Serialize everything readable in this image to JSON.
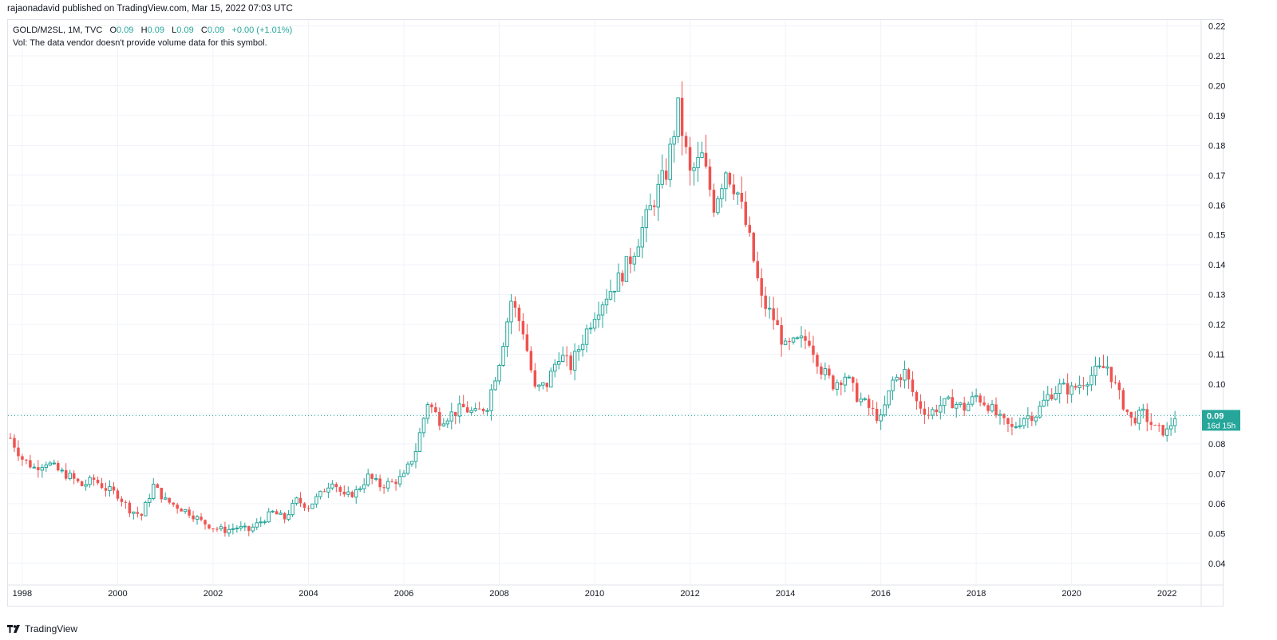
{
  "header": {
    "publisher": "rajaonadavid published on TradingView.com, Mar 15, 2022 07:03 UTC"
  },
  "legend": {
    "symbol": "GOLD/M2SL, 1M, TVC",
    "open_label": "O",
    "open": "0.09",
    "high_label": "H",
    "high": "0.09",
    "low_label": "L",
    "low": "0.09",
    "close_label": "C",
    "close": "0.09",
    "change": "+0.00 (+1.01%)",
    "volume_note": "Vol: The data vendor doesn't provide volume data for this symbol."
  },
  "last_price": {
    "value": "0.09",
    "countdown": "16d 15h",
    "level": 0.0895
  },
  "footer": {
    "brand": "TradingView"
  },
  "colors": {
    "up": "#26a69a",
    "down": "#ef5350",
    "grid": "#f0f3fa",
    "badge": "#26a69a"
  },
  "chart_data": {
    "type": "candlestick",
    "title": "GOLD/M2SL, 1M, TVC",
    "xlabel": "",
    "ylabel": "",
    "ylim": [
      0.033,
      0.222
    ],
    "xlim": [
      1997.7,
      2022.7
    ],
    "y_ticks": [
      "0.04",
      "0.05",
      "0.06",
      "0.07",
      "0.08",
      "0.09",
      "0.10",
      "0.11",
      "0.12",
      "0.13",
      "0.14",
      "0.15",
      "0.16",
      "0.17",
      "0.18",
      "0.19",
      "0.20",
      "0.21",
      "0.22"
    ],
    "x_ticks": [
      "1998",
      "2000",
      "2002",
      "2004",
      "2006",
      "2008",
      "2010",
      "2012",
      "2014",
      "2016",
      "2018",
      "2020",
      "2022"
    ],
    "series_closes": [
      [
        1997.75,
        0.082
      ],
      [
        1998.0,
        0.075
      ],
      [
        1998.25,
        0.072
      ],
      [
        1998.5,
        0.074
      ],
      [
        1998.75,
        0.071
      ],
      [
        1999.0,
        0.069
      ],
      [
        1999.25,
        0.066
      ],
      [
        1999.5,
        0.068
      ],
      [
        1999.75,
        0.065
      ],
      [
        2000.0,
        0.063
      ],
      [
        2000.25,
        0.058
      ],
      [
        2000.5,
        0.056
      ],
      [
        2000.75,
        0.066
      ],
      [
        2001.0,
        0.061
      ],
      [
        2001.25,
        0.059
      ],
      [
        2001.5,
        0.057
      ],
      [
        2001.75,
        0.054
      ],
      [
        2002.0,
        0.052
      ],
      [
        2002.25,
        0.051
      ],
      [
        2002.5,
        0.052
      ],
      [
        2002.75,
        0.051
      ],
      [
        2003.0,
        0.054
      ],
      [
        2003.25,
        0.057
      ],
      [
        2003.5,
        0.055
      ],
      [
        2003.75,
        0.061
      ],
      [
        2004.0,
        0.059
      ],
      [
        2004.25,
        0.063
      ],
      [
        2004.5,
        0.068
      ],
      [
        2004.75,
        0.062
      ],
      [
        2005.0,
        0.064
      ],
      [
        2005.25,
        0.069
      ],
      [
        2005.5,
        0.066
      ],
      [
        2005.75,
        0.067
      ],
      [
        2006.0,
        0.069
      ],
      [
        2006.25,
        0.078
      ],
      [
        2006.5,
        0.094
      ],
      [
        2006.75,
        0.088
      ],
      [
        2007.0,
        0.09
      ],
      [
        2007.25,
        0.092
      ],
      [
        2007.5,
        0.09
      ],
      [
        2007.75,
        0.093
      ],
      [
        2008.0,
        0.108
      ],
      [
        2008.25,
        0.128
      ],
      [
        2008.5,
        0.118
      ],
      [
        2008.75,
        0.098
      ],
      [
        2009.0,
        0.1
      ],
      [
        2009.25,
        0.11
      ],
      [
        2009.5,
        0.106
      ],
      [
        2009.75,
        0.115
      ],
      [
        2010.0,
        0.124
      ],
      [
        2010.25,
        0.13
      ],
      [
        2010.5,
        0.135
      ],
      [
        2010.75,
        0.142
      ],
      [
        2011.0,
        0.152
      ],
      [
        2011.25,
        0.162
      ],
      [
        2011.5,
        0.171
      ],
      [
        2011.75,
        0.192
      ],
      [
        2012.0,
        0.17
      ],
      [
        2012.25,
        0.176
      ],
      [
        2012.5,
        0.16
      ],
      [
        2012.75,
        0.172
      ],
      [
        2013.0,
        0.164
      ],
      [
        2013.25,
        0.148
      ],
      [
        2013.5,
        0.128
      ],
      [
        2013.75,
        0.122
      ],
      [
        2014.0,
        0.112
      ],
      [
        2014.25,
        0.114
      ],
      [
        2014.5,
        0.115
      ],
      [
        2014.75,
        0.105
      ],
      [
        2015.0,
        0.1
      ],
      [
        2015.25,
        0.103
      ],
      [
        2015.5,
        0.096
      ],
      [
        2015.75,
        0.092
      ],
      [
        2016.0,
        0.088
      ],
      [
        2016.25,
        0.101
      ],
      [
        2016.5,
        0.104
      ],
      [
        2016.75,
        0.094
      ],
      [
        2017.0,
        0.09
      ],
      [
        2017.25,
        0.093
      ],
      [
        2017.5,
        0.094
      ],
      [
        2017.75,
        0.092
      ],
      [
        2018.0,
        0.096
      ],
      [
        2018.25,
        0.093
      ],
      [
        2018.5,
        0.088
      ],
      [
        2018.75,
        0.085
      ],
      [
        2019.0,
        0.089
      ],
      [
        2019.25,
        0.09
      ],
      [
        2019.5,
        0.096
      ],
      [
        2019.75,
        0.099
      ],
      [
        2020.0,
        0.098
      ],
      [
        2020.25,
        0.101
      ],
      [
        2020.5,
        0.104
      ],
      [
        2020.75,
        0.106
      ],
      [
        2021.0,
        0.096
      ],
      [
        2021.25,
        0.088
      ],
      [
        2021.5,
        0.09
      ],
      [
        2021.75,
        0.085
      ],
      [
        2022.0,
        0.084
      ],
      [
        2022.17,
        0.0895
      ]
    ]
  }
}
